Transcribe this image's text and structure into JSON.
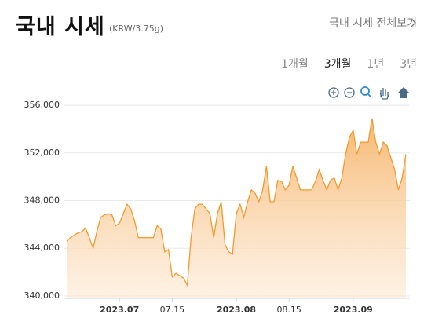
{
  "header": {
    "title": "국내 시세",
    "unit": "(KRW/3.75g)",
    "link": "국내 시세 전체보기"
  },
  "periods": {
    "options": [
      "1개월",
      "3개월",
      "1년",
      "3년"
    ],
    "selected": 1
  },
  "chart_data": {
    "type": "area",
    "categories": [
      null,
      null,
      null,
      null,
      null,
      null,
      null,
      null,
      null,
      null,
      null,
      null,
      null,
      null,
      "2023.07",
      null,
      null,
      null,
      null,
      null,
      null,
      null,
      null,
      null,
      null,
      null,
      null,
      null,
      "07.15",
      null,
      null,
      null,
      null,
      null,
      null,
      null,
      null,
      null,
      null,
      null,
      null,
      null,
      null,
      null,
      null,
      "2023.08",
      null,
      null,
      null,
      null,
      null,
      null,
      null,
      null,
      null,
      null,
      null,
      null,
      null,
      "08.15",
      null,
      null,
      null,
      null,
      null,
      null,
      null,
      null,
      null,
      null,
      null,
      null,
      null,
      null,
      null,
      null,
      "2023.09",
      null,
      null,
      null,
      null,
      null,
      null,
      null,
      null,
      null,
      null,
      null,
      null,
      null,
      null
    ],
    "values": [
      344600,
      344900,
      345100,
      345300,
      345400,
      345700,
      344900,
      344000,
      345400,
      346600,
      346800,
      346900,
      346800,
      345900,
      346100,
      346900,
      347700,
      347300,
      346300,
      344900,
      344900,
      344900,
      344900,
      344900,
      345900,
      345600,
      343700,
      343900,
      341600,
      341900,
      341700,
      341500,
      340900,
      344900,
      347300,
      347700,
      347700,
      347300,
      346900,
      344900,
      346900,
      347900,
      344300,
      343700,
      343500,
      346900,
      347700,
      346600,
      347900,
      348900,
      348600,
      347900,
      348900,
      350900,
      347900,
      347900,
      349700,
      349600,
      348900,
      349300,
      350900,
      349900,
      348900,
      348900,
      348900,
      348900,
      349600,
      350600,
      349700,
      348900,
      349700,
      349900,
      348900,
      349900,
      351900,
      353300,
      353900,
      351900,
      352900,
      352900,
      352900,
      354900,
      352900,
      351900,
      352900,
      352600,
      351600,
      350600,
      348900,
      349900,
      351900
    ],
    "color": "#f39a2e",
    "ylim": [
      339800,
      356400
    ],
    "yticks": [
      {
        "value": 340000,
        "label": "340,000"
      },
      {
        "value": 344000,
        "label": "344,000"
      },
      {
        "value": 348000,
        "label": "348,000"
      },
      {
        "value": 352000,
        "label": "352,000"
      },
      {
        "value": 356000,
        "label": "356,000"
      }
    ],
    "grid": true
  }
}
